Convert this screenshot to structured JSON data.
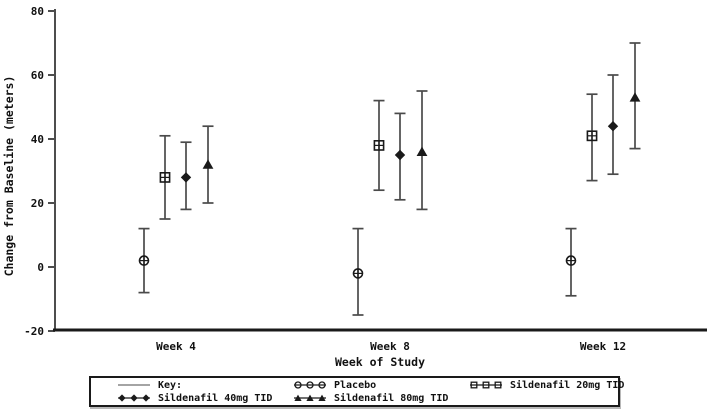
{
  "chart_data": {
    "type": "scatter",
    "subtype": "errorbar",
    "title": "",
    "xlabel": "Week of Study",
    "ylabel": "Change from Baseline (meters)",
    "ylim": [
      -20,
      80
    ],
    "yticks": [
      -20,
      0,
      20,
      40,
      60,
      80
    ],
    "grid": false,
    "legend_position": "bottom-box",
    "categories": [
      "Week 4",
      "Week 8",
      "Week 12"
    ],
    "series": [
      {
        "name": "Placebo",
        "marker": "circle-plus",
        "means": [
          2,
          -2,
          2
        ],
        "lower": [
          -8,
          -15,
          -9
        ],
        "upper": [
          12,
          12,
          12
        ]
      },
      {
        "name": "Sildenafil 20mg TID",
        "marker": "square-plus",
        "means": [
          28,
          38,
          41
        ],
        "lower": [
          15,
          24,
          27
        ],
        "upper": [
          41,
          52,
          54
        ]
      },
      {
        "name": "Sildenafil 40mg TID",
        "marker": "diamond-filled",
        "means": [
          28,
          35,
          44
        ],
        "lower": [
          18,
          21,
          29
        ],
        "upper": [
          39,
          48,
          60
        ]
      },
      {
        "name": "Sildenafil 80mg TID",
        "marker": "triangle-filled",
        "means": [
          32,
          36,
          53
        ],
        "lower": [
          20,
          18,
          37
        ],
        "upper": [
          44,
          55,
          70
        ]
      }
    ]
  },
  "legend": {
    "key_label": "Key:",
    "items": [
      {
        "label": "Placebo",
        "marker": "circle-open"
      },
      {
        "label": "Sildenafil 20mg TID",
        "marker": "square-open"
      },
      {
        "label": "Sildenafil 40mg TID",
        "marker": "diamond-filled"
      },
      {
        "label": "Sildenafil 80mg TID",
        "marker": "triangle-filled"
      }
    ]
  },
  "colors": {
    "foreground": "#1a1a1a",
    "error_bar": "#4a4a4a",
    "axis": "#4d4d4d",
    "key_line": "#6e6e6e",
    "background": "#ffffff"
  }
}
